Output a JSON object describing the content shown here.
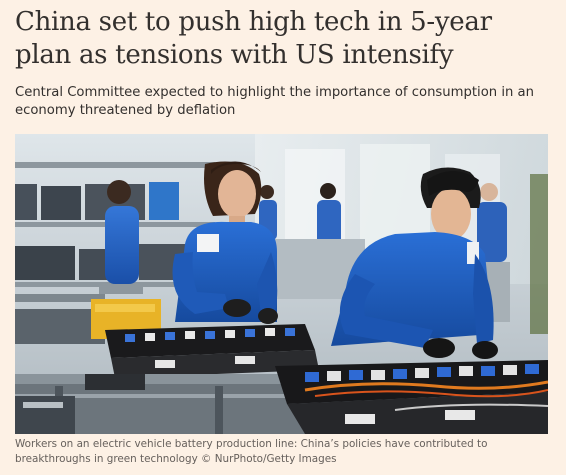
{
  "article": {
    "headline": "China set to push high tech in 5-year plan as tensions with US intensify",
    "standfirst": "Central Committee expected to highlight the importance of consumption in an economy threatened by deflation",
    "image": {
      "caption": "Workers on an electric vehicle battery production line: China’s policies have contributed to breakthroughs in green technology © NurPhoto/Getty Images"
    }
  },
  "colors": {
    "page_background": "#fdf1e5",
    "headline_text": "#33302e",
    "caption_text": "#66605c",
    "uniform_blue": "#1f5fc8"
  }
}
